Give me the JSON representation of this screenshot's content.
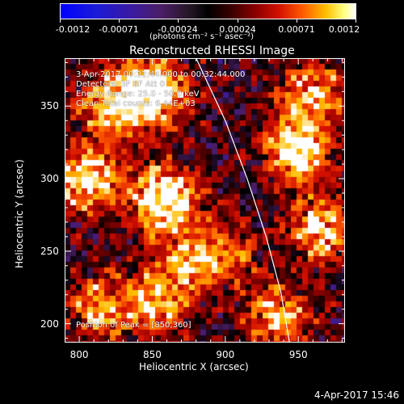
{
  "colorbar": {
    "labels": [
      "-0.0012",
      "-0.00071",
      "-0.00024",
      "0.00024",
      "0.00071",
      "0.0012"
    ],
    "unit": "(photons cm⁻² s⁻¹ asec⁻²)"
  },
  "chart_data": {
    "type": "heatmap",
    "title": "Reconstructed RHESSI Image",
    "xlabel": "Heliocentric X (arcsec)",
    "ylabel": "Heliocentric Y (arcsec)",
    "xlim": [
      790,
      982
    ],
    "ylim": [
      187,
      383
    ],
    "xticks": [
      800,
      850,
      900,
      950
    ],
    "yticks": [
      200,
      250,
      300,
      350
    ],
    "color_range": [
      -0.0012,
      0.0012
    ],
    "limb_curve": [
      [
        880,
        383
      ],
      [
        900,
        340
      ],
      [
        915,
        300
      ],
      [
        928,
        260
      ],
      [
        938,
        222
      ],
      [
        944,
        187
      ]
    ],
    "peak_position": [
      850,
      360
    ],
    "annotations": {
      "time_range": "3-Apr-2017 00:22:44.000 to 00:32:44.000",
      "detectors": "Detectors: 3F 6F Att 0",
      "energy_range": "Energy Range: 25.0 - 50.0 keV",
      "clean_counts": "Clean     Total counts: 6.44E+03",
      "peak": "Position of Peak = [850,360]"
    },
    "colormap": [
      "#0000ff",
      "#3a1aa0",
      "#4b1e66",
      "#000000",
      "#8a0000",
      "#d31000",
      "#ff5a00",
      "#ffbf00",
      "#ffffff"
    ]
  },
  "timestamp": "4-Apr-2017 15:46"
}
